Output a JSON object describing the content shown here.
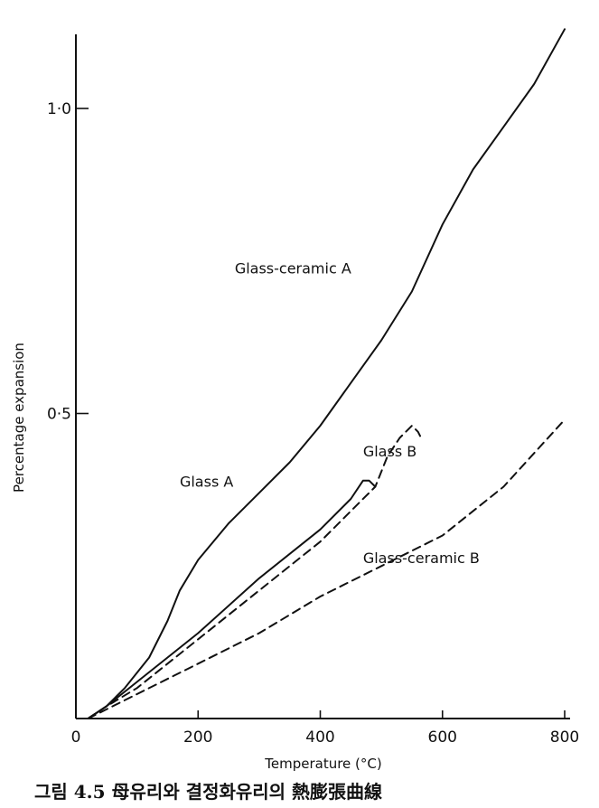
{
  "caption": "그림 4.5 母유리와 결정화유리의 熱膨張曲線",
  "chart_data": {
    "type": "line",
    "xlabel": "Temperature (°C)",
    "ylabel": "Percentage expansion",
    "xlim": [
      0,
      800
    ],
    "ylim": [
      0,
      1.13
    ],
    "x_ticks": [
      "0",
      "200",
      "400",
      "600",
      "800"
    ],
    "y_ticks": [
      {
        "value": 0.5,
        "label": "0·5"
      },
      {
        "value": 1.0,
        "label": "1·0"
      }
    ],
    "grid": false,
    "legend": "none",
    "series": [
      {
        "name": "Glass-ceramic A",
        "style": "solid",
        "points": [
          [
            20,
            0
          ],
          [
            50,
            0.02
          ],
          [
            80,
            0.05
          ],
          [
            120,
            0.1
          ],
          [
            150,
            0.16
          ],
          [
            170,
            0.21
          ],
          [
            200,
            0.26
          ],
          [
            250,
            0.32
          ],
          [
            300,
            0.37
          ],
          [
            350,
            0.42
          ],
          [
            400,
            0.48
          ],
          [
            450,
            0.55
          ],
          [
            500,
            0.62
          ],
          [
            550,
            0.7
          ],
          [
            600,
            0.81
          ],
          [
            650,
            0.9
          ],
          [
            700,
            0.97
          ],
          [
            750,
            1.04
          ],
          [
            800,
            1.13
          ]
        ]
      },
      {
        "name": "Glass A",
        "style": "solid",
        "points": [
          [
            20,
            0
          ],
          [
            50,
            0.02
          ],
          [
            100,
            0.06
          ],
          [
            200,
            0.14
          ],
          [
            300,
            0.23
          ],
          [
            400,
            0.31
          ],
          [
            450,
            0.36
          ],
          [
            470,
            0.39
          ],
          [
            480,
            0.39
          ],
          [
            490,
            0.38
          ]
        ]
      },
      {
        "name": "Glass B",
        "style": "dashed",
        "points": [
          [
            20,
            0
          ],
          [
            50,
            0.02
          ],
          [
            100,
            0.05
          ],
          [
            200,
            0.13
          ],
          [
            300,
            0.21
          ],
          [
            400,
            0.29
          ],
          [
            450,
            0.34
          ],
          [
            490,
            0.38
          ],
          [
            510,
            0.43
          ],
          [
            530,
            0.46
          ],
          [
            550,
            0.48
          ],
          [
            560,
            0.47
          ],
          [
            565,
            0.46
          ]
        ]
      },
      {
        "name": "Glass-ceramic B",
        "style": "dashed",
        "points": [
          [
            20,
            0
          ],
          [
            100,
            0.04
          ],
          [
            200,
            0.09
          ],
          [
            300,
            0.14
          ],
          [
            400,
            0.2
          ],
          [
            500,
            0.25
          ],
          [
            600,
            0.3
          ],
          [
            700,
            0.38
          ],
          [
            800,
            0.49
          ]
        ]
      }
    ],
    "annotations": [
      {
        "text": "Glass-ceramic A",
        "at": [
          260,
          0.73
        ]
      },
      {
        "text": "Glass A",
        "at": [
          170,
          0.38
        ]
      },
      {
        "text": "Glass B",
        "at": [
          470,
          0.43
        ]
      },
      {
        "text": "Glass-ceramic B",
        "at": [
          470,
          0.255
        ]
      }
    ]
  }
}
